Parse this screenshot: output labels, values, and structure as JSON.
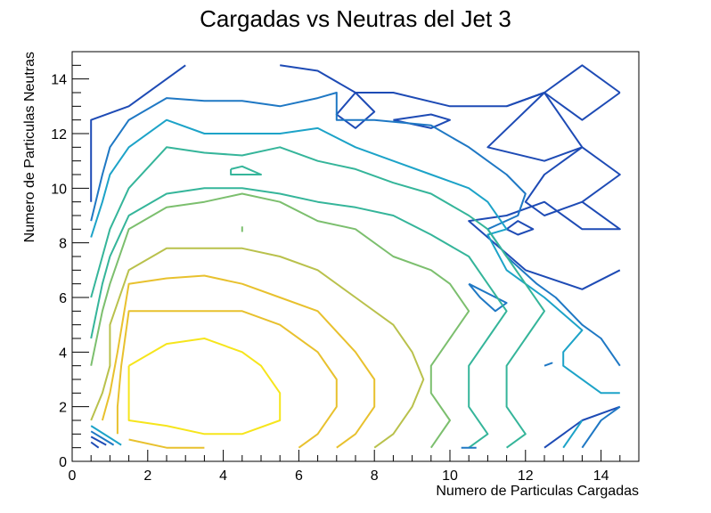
{
  "chart_data": {
    "type": "contour",
    "title": "Cargadas vs Neutras del Jet 3",
    "xlabel": "Numero de Particulas Cargadas",
    "ylabel": "Numero de Particulas Neutras",
    "xlim": [
      0,
      15
    ],
    "ylim": [
      0,
      15
    ],
    "x_major_ticks": [
      0,
      2,
      4,
      6,
      8,
      10,
      12,
      14
    ],
    "x_tick_labels": [
      "0",
      "2",
      "4",
      "6",
      "8",
      "10",
      "12",
      "14"
    ],
    "y_major_ticks": [
      0,
      2,
      4,
      6,
      8,
      10,
      12,
      14
    ],
    "y_tick_labels": [
      "0",
      "2",
      "4",
      "6",
      "8",
      "10",
      "12",
      "14"
    ],
    "grid": false,
    "legend": "none",
    "colormap": [
      "#1e4bb5",
      "#1f78c4",
      "#1da3c8",
      "#35b59a",
      "#7cbf6e",
      "#b9c14c",
      "#e8c12e",
      "#f6e51c"
    ],
    "series": [
      {
        "color": "#1e4bb5",
        "points": [
          [
            0.5,
            9.5
          ],
          [
            0.5,
            12.5
          ],
          [
            1.5,
            13.0
          ],
          [
            3.0,
            14.5
          ]
        ]
      },
      {
        "color": "#1e4bb5",
        "points": [
          [
            5.5,
            14.5
          ],
          [
            6.5,
            14.3
          ],
          [
            7.5,
            13.5
          ],
          [
            8.5,
            13.5
          ],
          [
            10.0,
            13.0
          ],
          [
            11.5,
            13.0
          ],
          [
            12.5,
            13.5
          ],
          [
            13.5,
            14.5
          ],
          [
            14.5,
            13.5
          ]
        ]
      },
      {
        "color": "#1e4bb5",
        "points": [
          [
            12.5,
            13.5
          ],
          [
            13.5,
            12.5
          ],
          [
            14.5,
            13.5
          ]
        ]
      },
      {
        "color": "#1e4bb5",
        "points": [
          [
            12.5,
            13.5
          ],
          [
            13.5,
            11.5
          ],
          [
            14.5,
            10.5
          ],
          [
            13.5,
            9.5
          ],
          [
            14.5,
            8.5
          ],
          [
            13.5,
            8.5
          ],
          [
            12.5,
            9.5
          ],
          [
            11.5,
            9.0
          ],
          [
            10.5,
            8.8
          ],
          [
            12.0,
            7.0
          ],
          [
            13.5,
            6.3
          ],
          [
            14.5,
            7.0
          ]
        ]
      },
      {
        "color": "#1e4bb5",
        "points": [
          [
            13.5,
            11.5
          ],
          [
            12.5,
            10.5
          ],
          [
            12.0,
            9.5
          ],
          [
            12.5,
            9.0
          ],
          [
            13.5,
            9.5
          ]
        ]
      },
      {
        "color": "#1e4bb5",
        "points": [
          [
            11.5,
            13.0
          ],
          [
            12.5,
            13.5
          ],
          [
            11.0,
            11.5
          ],
          [
            12.5,
            11.0
          ],
          [
            13.5,
            11.5
          ]
        ]
      },
      {
        "color": "#1e4bb5",
        "points": [
          [
            7.5,
            13.5
          ],
          [
            7.0,
            12.7
          ],
          [
            7.5,
            12.2
          ],
          [
            8.0,
            12.8
          ],
          [
            7.5,
            13.5
          ]
        ]
      },
      {
        "color": "#1e4bb5",
        "points": [
          [
            8.5,
            12.5
          ],
          [
            9.5,
            12.7
          ],
          [
            10.0,
            12.5
          ],
          [
            9.5,
            12.2
          ],
          [
            8.5,
            12.5
          ]
        ]
      },
      {
        "color": "#1e4bb5",
        "points": [
          [
            11.5,
            8.5
          ],
          [
            11.8,
            8.8
          ],
          [
            12.2,
            8.5
          ],
          [
            11.8,
            8.3
          ],
          [
            11.5,
            8.5
          ]
        ]
      },
      {
        "color": "#1e4bb5",
        "points": [
          [
            12.5,
            0.5
          ],
          [
            13.5,
            1.5
          ],
          [
            14.5,
            2.0
          ]
        ]
      },
      {
        "color": "#1f78c4",
        "points": [
          [
            0.5,
            8.8
          ],
          [
            0.8,
            10.5
          ],
          [
            1.0,
            11.5
          ],
          [
            1.5,
            12.5
          ],
          [
            2.5,
            13.3
          ],
          [
            3.5,
            13.2
          ],
          [
            4.5,
            13.2
          ],
          [
            5.5,
            13.0
          ],
          [
            6.5,
            13.3
          ],
          [
            7.0,
            13.5
          ],
          [
            7.0,
            12.5
          ],
          [
            8.0,
            12.5
          ],
          [
            9.5,
            12.3
          ],
          [
            10.5,
            11.5
          ],
          [
            11.0,
            11.0
          ],
          [
            11.5,
            10.5
          ],
          [
            12.0,
            9.8
          ],
          [
            11.8,
            9.0
          ],
          [
            11.0,
            8.5
          ],
          [
            11.5,
            7.5
          ],
          [
            12.3,
            6.5
          ],
          [
            12.8,
            6.0
          ],
          [
            13.5,
            5.0
          ],
          [
            14.0,
            4.5
          ],
          [
            14.5,
            3.5
          ]
        ]
      },
      {
        "color": "#1f78c4",
        "points": [
          [
            13.5,
            0.5
          ],
          [
            14.0,
            1.5
          ],
          [
            14.5,
            2.0
          ]
        ]
      },
      {
        "color": "#1f78c4",
        "points": [
          [
            10.5,
            6.5
          ],
          [
            10.8,
            6.0
          ],
          [
            11.2,
            5.5
          ],
          [
            11.5,
            5.8
          ],
          [
            10.5,
            6.5
          ]
        ]
      },
      {
        "color": "#1da3c8",
        "points": [
          [
            0.5,
            8.2
          ],
          [
            0.8,
            9.5
          ],
          [
            1.0,
            10.5
          ],
          [
            1.5,
            11.5
          ],
          [
            2.5,
            12.5
          ],
          [
            3.5,
            12.0
          ],
          [
            4.5,
            12.0
          ],
          [
            5.5,
            12.0
          ],
          [
            6.5,
            12.2
          ],
          [
            7.5,
            11.5
          ],
          [
            8.5,
            11.0
          ],
          [
            9.5,
            10.5
          ],
          [
            10.5,
            10.0
          ],
          [
            11.0,
            9.5
          ],
          [
            11.5,
            8.5
          ],
          [
            11.0,
            8.3
          ],
          [
            11.5,
            7.0
          ],
          [
            12.0,
            6.5
          ],
          [
            12.5,
            6.0
          ],
          [
            13.5,
            4.8
          ],
          [
            13.0,
            4.0
          ],
          [
            13.0,
            3.5
          ],
          [
            14.0,
            2.5
          ],
          [
            14.5,
            2.5
          ]
        ]
      },
      {
        "color": "#1da3c8",
        "points": [
          [
            13.0,
            0.5
          ],
          [
            13.5,
            1.5
          ]
        ]
      },
      {
        "color": "#35b59a",
        "points": [
          [
            0.5,
            6.0
          ],
          [
            0.8,
            7.5
          ],
          [
            1.0,
            8.5
          ],
          [
            1.5,
            10.0
          ],
          [
            2.5,
            11.5
          ],
          [
            3.5,
            11.3
          ],
          [
            4.5,
            11.2
          ],
          [
            5.5,
            11.5
          ],
          [
            6.5,
            11.0
          ],
          [
            7.5,
            10.7
          ],
          [
            8.5,
            10.2
          ],
          [
            9.5,
            9.8
          ],
          [
            10.5,
            9.0
          ],
          [
            11.0,
            8.5
          ],
          [
            11.5,
            7.5
          ],
          [
            12.0,
            6.5
          ],
          [
            12.5,
            5.5
          ],
          [
            12.0,
            4.5
          ],
          [
            11.5,
            3.5
          ],
          [
            11.5,
            2.0
          ],
          [
            12.0,
            1.0
          ],
          [
            11.5,
            0.5
          ]
        ]
      },
      {
        "color": "#35b59a",
        "points": [
          [
            0.5,
            4.5
          ],
          [
            0.8,
            6.5
          ],
          [
            1.0,
            7.5
          ],
          [
            1.5,
            9.0
          ],
          [
            2.5,
            9.8
          ],
          [
            3.5,
            10.0
          ],
          [
            4.5,
            10.0
          ],
          [
            5.5,
            9.8
          ],
          [
            6.5,
            9.5
          ],
          [
            7.5,
            9.3
          ],
          [
            8.5,
            9.0
          ],
          [
            9.5,
            8.3
          ],
          [
            10.5,
            7.5
          ],
          [
            11.0,
            6.5
          ],
          [
            11.5,
            5.5
          ],
          [
            11.0,
            4.5
          ],
          [
            10.5,
            3.5
          ],
          [
            10.5,
            2.0
          ],
          [
            11.0,
            1.0
          ],
          [
            10.5,
            0.5
          ]
        ]
      },
      {
        "color": "#35b59a",
        "points": [
          [
            4.2,
            10.7
          ],
          [
            4.5,
            10.8
          ],
          [
            5.0,
            10.5
          ],
          [
            4.2,
            10.5
          ],
          [
            4.2,
            10.7
          ]
        ]
      },
      {
        "color": "#7cbf6e",
        "points": [
          [
            0.5,
            3.5
          ],
          [
            0.8,
            5.5
          ],
          [
            1.0,
            6.5
          ],
          [
            1.5,
            8.5
          ],
          [
            2.5,
            9.3
          ],
          [
            3.5,
            9.5
          ],
          [
            4.5,
            9.8
          ],
          [
            5.5,
            9.5
          ],
          [
            6.5,
            8.8
          ],
          [
            7.5,
            8.5
          ],
          [
            8.5,
            7.5
          ],
          [
            9.5,
            7.0
          ],
          [
            10.0,
            6.5
          ],
          [
            10.5,
            5.5
          ],
          [
            10.0,
            4.5
          ],
          [
            9.5,
            3.5
          ],
          [
            9.5,
            2.5
          ],
          [
            10.0,
            1.5
          ],
          [
            9.5,
            0.5
          ]
        ]
      },
      {
        "color": "#7cbf6e",
        "points": [
          [
            4.5,
            8.4
          ],
          [
            4.5,
            8.6
          ]
        ]
      },
      {
        "color": "#b9c14c",
        "points": [
          [
            0.5,
            1.5
          ],
          [
            0.8,
            2.5
          ],
          [
            1.0,
            3.5
          ],
          [
            1.0,
            5.0
          ],
          [
            1.5,
            7.0
          ],
          [
            2.5,
            7.8
          ],
          [
            3.5,
            7.8
          ],
          [
            4.5,
            7.8
          ],
          [
            5.5,
            7.5
          ],
          [
            6.5,
            7.0
          ],
          [
            7.5,
            6.0
          ],
          [
            8.5,
            5.0
          ],
          [
            9.0,
            4.0
          ],
          [
            9.3,
            3.0
          ],
          [
            9.0,
            2.0
          ],
          [
            8.5,
            1.0
          ],
          [
            8.0,
            0.5
          ]
        ]
      },
      {
        "color": "#e8c12e",
        "points": [
          [
            0.8,
            1.5
          ],
          [
            1.0,
            2.5
          ],
          [
            1.2,
            4.0
          ],
          [
            1.5,
            6.5
          ],
          [
            2.5,
            6.7
          ],
          [
            3.5,
            6.8
          ],
          [
            4.5,
            6.5
          ],
          [
            5.5,
            6.0
          ],
          [
            6.5,
            5.5
          ],
          [
            7.5,
            4.0
          ],
          [
            8.0,
            3.0
          ],
          [
            8.0,
            2.0
          ],
          [
            7.5,
            1.0
          ],
          [
            7.0,
            0.5
          ]
        ]
      },
      {
        "color": "#e8c12e",
        "points": [
          [
            1.2,
            1.0
          ],
          [
            1.2,
            2.0
          ],
          [
            1.3,
            3.5
          ],
          [
            1.5,
            5.5
          ],
          [
            2.5,
            5.5
          ],
          [
            3.5,
            5.5
          ],
          [
            4.5,
            5.5
          ],
          [
            5.5,
            5.0
          ],
          [
            6.5,
            4.0
          ],
          [
            7.0,
            3.0
          ],
          [
            7.0,
            2.0
          ],
          [
            6.5,
            1.0
          ],
          [
            6.0,
            0.5
          ]
        ]
      },
      {
        "color": "#e8c12e",
        "points": [
          [
            1.5,
            0.8
          ],
          [
            2.5,
            0.5
          ],
          [
            3.5,
            0.5
          ]
        ]
      },
      {
        "color": "#f6e51c",
        "points": [
          [
            1.5,
            3.5
          ],
          [
            1.5,
            1.5
          ],
          [
            2.5,
            1.3
          ],
          [
            3.5,
            1.0
          ],
          [
            4.5,
            1.0
          ],
          [
            5.5,
            1.5
          ],
          [
            5.5,
            2.5
          ],
          [
            5.0,
            3.5
          ],
          [
            4.5,
            4.0
          ],
          [
            3.5,
            4.5
          ],
          [
            2.5,
            4.3
          ],
          [
            1.5,
            3.5
          ]
        ]
      },
      {
        "color": "#1da3c8",
        "points": [
          [
            0.5,
            1.3
          ],
          [
            1.3,
            0.6
          ]
        ]
      },
      {
        "color": "#1f78c4",
        "points": [
          [
            0.5,
            1.1
          ],
          [
            1.1,
            0.6
          ]
        ]
      },
      {
        "color": "#1e4bb5",
        "points": [
          [
            0.5,
            0.9
          ],
          [
            0.9,
            0.6
          ]
        ]
      },
      {
        "color": "#1e4bb5",
        "points": [
          [
            0.5,
            0.7
          ],
          [
            0.7,
            0.5
          ]
        ]
      },
      {
        "color": "#1f78c4",
        "points": [
          [
            12.5,
            3.5
          ],
          [
            12.7,
            3.6
          ],
          [
            12.5,
            3.5
          ]
        ]
      },
      {
        "color": "#1f78c4",
        "points": [
          [
            10.3,
            0.5
          ],
          [
            10.7,
            0.5
          ]
        ]
      }
    ]
  }
}
